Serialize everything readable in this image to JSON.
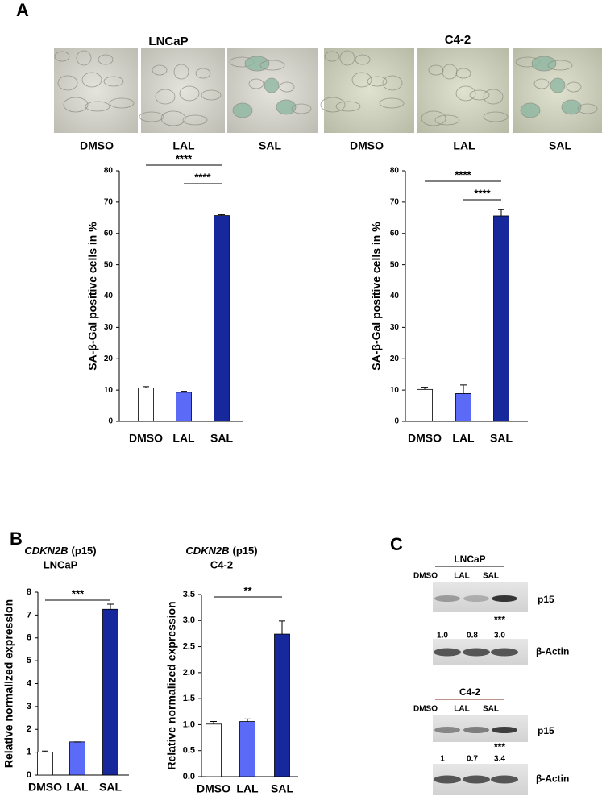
{
  "panel_labels": [
    "A",
    "B",
    "C"
  ],
  "micrographs": [
    {
      "title": "LNCaP",
      "labels": [
        "DMSO",
        "LAL",
        "SAL"
      ]
    },
    {
      "title": "C4-2",
      "labels": [
        "DMSO",
        "LAL",
        "SAL"
      ]
    }
  ],
  "chart_data": [
    {
      "type": "bar",
      "y_label": "SA-β-Gal positive cells in %",
      "categories": [
        "DMSO",
        "LAL",
        "SAL"
      ],
      "values": [
        10.7,
        9.3,
        65.7
      ],
      "errors": [
        0.4,
        0.3,
        0.3
      ],
      "colors": [
        "#ffffff",
        "#5b6af7",
        "#17279c"
      ],
      "ylim": [
        0,
        80
      ],
      "yticks": [
        0,
        10,
        20,
        30,
        40,
        50,
        60,
        70,
        80
      ],
      "annotations": [
        {
          "text": "****",
          "between": [
            "DMSO",
            "SAL"
          ]
        },
        {
          "text": "****",
          "between": [
            "LAL",
            "SAL"
          ]
        }
      ]
    },
    {
      "type": "bar",
      "y_label": "SA-β-Gal positive cells in %",
      "categories": [
        "DMSO",
        "LAL",
        "SAL"
      ],
      "values": [
        10.2,
        8.9,
        65.6
      ],
      "errors": [
        0.7,
        2.7,
        2.0
      ],
      "colors": [
        "#ffffff",
        "#5b6af7",
        "#17279c"
      ],
      "ylim": [
        0,
        80
      ],
      "yticks": [
        0,
        10,
        20,
        30,
        40,
        50,
        60,
        70,
        80
      ],
      "annotations": [
        {
          "text": "****",
          "between": [
            "DMSO",
            "SAL"
          ]
        },
        {
          "text": "****",
          "between": [
            "LAL",
            "SAL"
          ]
        }
      ]
    },
    {
      "type": "bar",
      "gene": "CDKN2B",
      "title": "(p15)",
      "subtitle": "LNCaP",
      "y_label": "Relative normalized expression",
      "categories": [
        "DMSO",
        "LAL",
        "SAL"
      ],
      "values": [
        1.0,
        1.45,
        7.25
      ],
      "errors": [
        0.05,
        0,
        0.22
      ],
      "colors": [
        "#ffffff",
        "#5b6af7",
        "#17279c"
      ],
      "ylim": [
        0,
        8
      ],
      "yticks": [
        0,
        1,
        2,
        3,
        4,
        5,
        6,
        7,
        8
      ],
      "annotations": [
        {
          "text": "***",
          "between": [
            "DMSO",
            "SAL"
          ]
        }
      ]
    },
    {
      "type": "bar",
      "gene": "CDKN2B",
      "title": "(p15)",
      "subtitle": "C4-2",
      "y_label": "Relative normalized expression",
      "categories": [
        "DMSO",
        "LAL",
        "SAL"
      ],
      "values": [
        1.01,
        1.06,
        2.74
      ],
      "errors": [
        0.05,
        0.05,
        0.25
      ],
      "colors": [
        "#ffffff",
        "#5b6af7",
        "#17279c"
      ],
      "ylim": [
        0,
        3.5
      ],
      "yticks": [
        {
          "value": 0,
          "label": "0.0"
        },
        {
          "value": 0.5,
          "label": "0.5"
        },
        {
          "value": 1,
          "label": "1.0"
        },
        {
          "value": 1.5,
          "label": "1.5"
        },
        {
          "value": 2,
          "label": "2.0"
        },
        {
          "value": 2.5,
          "label": "2.5"
        },
        {
          "value": 3,
          "label": "3.0"
        },
        {
          "value": 3.5,
          "label": "3.5"
        }
      ],
      "annotations": [
        {
          "text": "**",
          "between": [
            "DMSO",
            "SAL"
          ]
        }
      ]
    }
  ],
  "blots": [
    {
      "title": "LNCaP",
      "lanes": [
        "DMSO",
        "LAL",
        "SAL"
      ],
      "target": "p15",
      "significance": "***",
      "quantification": [
        "1.0",
        "0.8",
        "3.0"
      ],
      "control": "β-Actin"
    },
    {
      "title": "C4-2",
      "lanes": [
        "DMSO",
        "LAL",
        "SAL"
      ],
      "target": "p15",
      "significance": "***",
      "quantification": [
        "1",
        "0.7",
        "3.4"
      ],
      "control": "β-Actin"
    }
  ]
}
